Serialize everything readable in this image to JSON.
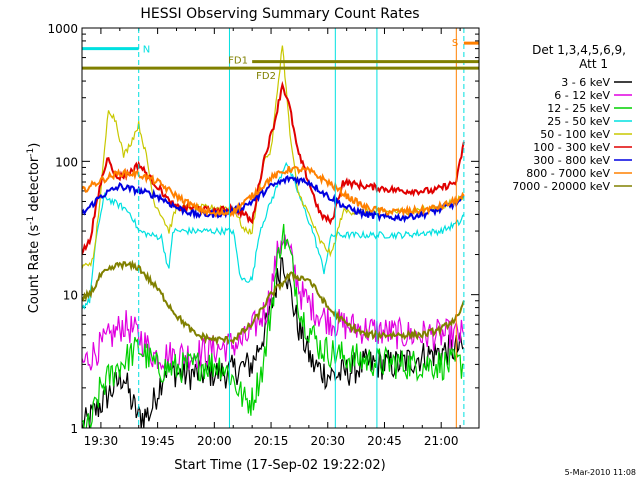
{
  "chart_data": {
    "type": "line",
    "title": "HESSI Observing Summary Count Rates",
    "xlabel": "Start Time (17-Sep-02 19:22:02)",
    "ylabel_main": "Count Rate (s",
    "ylabel_sup1": "-1",
    "ylabel_mid": " detector",
    "ylabel_sup2": "-1",
    "ylabel_end": ")",
    "yscale": "log",
    "ylim": [
      1,
      1000
    ],
    "xlim_minutes": [
      -5,
      100
    ],
    "x_ticks": [
      {
        "label": "19:30",
        "min": 0
      },
      {
        "label": "19:45",
        "min": 15
      },
      {
        "label": "20:00",
        "min": 30
      },
      {
        "label": "20:15",
        "min": 45
      },
      {
        "label": "20:30",
        "min": 60
      },
      {
        "label": "20:45",
        "min": 75
      },
      {
        "label": "21:00",
        "min": 90
      }
    ],
    "y_ticks": [
      {
        "label": "1",
        "value": 1
      },
      {
        "label": "10",
        "value": 10
      },
      {
        "label": "100",
        "value": 100
      },
      {
        "label": "1000",
        "value": 1000
      }
    ],
    "legend": {
      "placement": "right",
      "header1": "Det 1,3,4,5,6,9,",
      "header2": "Att 1"
    },
    "series": [
      {
        "name": "3 - 6 keV",
        "color": "#000000",
        "points": [
          [
            -5,
            1
          ],
          [
            6,
            2.5
          ],
          [
            8,
            1.6
          ],
          [
            10,
            1.2
          ],
          [
            13,
            1.3
          ],
          [
            17,
            2.8
          ],
          [
            22,
            2.5
          ],
          [
            28,
            2.6
          ],
          [
            33,
            2.6
          ],
          [
            40,
            3
          ],
          [
            44,
            6
          ],
          [
            47,
            14
          ],
          [
            48,
            20
          ],
          [
            49,
            15
          ],
          [
            52,
            6
          ],
          [
            56,
            3
          ],
          [
            60,
            2.5
          ],
          [
            63,
            2.5
          ],
          [
            70,
            3
          ],
          [
            78,
            3
          ],
          [
            86,
            3.5
          ],
          [
            95,
            4
          ],
          [
            96,
            4
          ]
        ]
      },
      {
        "name": "6 - 12 keV",
        "color": "#e000e0",
        "points": [
          [
            -5,
            3
          ],
          [
            6,
            6
          ],
          [
            10,
            5
          ],
          [
            14,
            3.5
          ],
          [
            19,
            3.5
          ],
          [
            25,
            3.6
          ],
          [
            32,
            4
          ],
          [
            38,
            4.5
          ],
          [
            44,
            8
          ],
          [
            47,
            22
          ],
          [
            48,
            28
          ],
          [
            50,
            20
          ],
          [
            53,
            10
          ],
          [
            58,
            7
          ],
          [
            63,
            6
          ],
          [
            70,
            5.5
          ],
          [
            80,
            5
          ],
          [
            90,
            5
          ],
          [
            96,
            5
          ]
        ]
      },
      {
        "name": "12 - 25 keV",
        "color": "#00d000",
        "points": [
          [
            -5,
            1
          ],
          [
            -3,
            1
          ],
          [
            0,
            2
          ],
          [
            5,
            3
          ],
          [
            10,
            4
          ],
          [
            15,
            2.8
          ],
          [
            20,
            2.8
          ],
          [
            27,
            3
          ],
          [
            32,
            3
          ],
          [
            35,
            2.3
          ],
          [
            38,
            1.6
          ],
          [
            40,
            1.6
          ],
          [
            43,
            3
          ],
          [
            47,
            20
          ],
          [
            48,
            30
          ],
          [
            50,
            20
          ],
          [
            53,
            7
          ],
          [
            58,
            4
          ],
          [
            63,
            3.5
          ],
          [
            70,
            3.2
          ],
          [
            80,
            3
          ],
          [
            90,
            3
          ],
          [
            96,
            3
          ]
        ]
      },
      {
        "name": "25 - 50 keV",
        "color": "#00e0e0",
        "points": [
          [
            -5,
            8
          ],
          [
            -3,
            9
          ],
          [
            -1,
            30
          ],
          [
            1,
            55
          ],
          [
            3,
            50
          ],
          [
            6,
            45
          ],
          [
            8,
            40
          ],
          [
            10,
            30
          ],
          [
            13,
            28
          ],
          [
            16,
            27
          ],
          [
            18,
            15
          ],
          [
            19,
            30
          ],
          [
            22,
            30
          ],
          [
            30,
            30
          ],
          [
            35,
            30
          ],
          [
            37,
            13
          ],
          [
            40,
            13
          ],
          [
            42,
            30
          ],
          [
            47,
            70
          ],
          [
            49,
            100
          ],
          [
            52,
            60
          ],
          [
            56,
            30
          ],
          [
            59,
            15
          ],
          [
            61,
            28
          ],
          [
            70,
            28
          ],
          [
            80,
            28
          ],
          [
            90,
            30
          ],
          [
            95,
            35
          ],
          [
            96,
            40
          ]
        ]
      },
      {
        "name": "50 - 100 keV",
        "color": "#c8c800",
        "points": [
          [
            -5,
            16
          ],
          [
            -2,
            18
          ],
          [
            0,
            60
          ],
          [
            2,
            250
          ],
          [
            4,
            200
          ],
          [
            6,
            110
          ],
          [
            8,
            140
          ],
          [
            10,
            190
          ],
          [
            12,
            110
          ],
          [
            14,
            50
          ],
          [
            16,
            40
          ],
          [
            18,
            30
          ],
          [
            20,
            45
          ],
          [
            25,
            45
          ],
          [
            32,
            45
          ],
          [
            35,
            45
          ],
          [
            38,
            30
          ],
          [
            40,
            30
          ],
          [
            43,
            100
          ],
          [
            45,
            120
          ],
          [
            48,
            760
          ],
          [
            50,
            160
          ],
          [
            52,
            60
          ],
          [
            55,
            40
          ],
          [
            58,
            25
          ],
          [
            61,
            20
          ],
          [
            64,
            42
          ],
          [
            70,
            42
          ],
          [
            80,
            42
          ],
          [
            90,
            45
          ],
          [
            96,
            55
          ]
        ]
      },
      {
        "name": "100 - 300 keV",
        "color": "#e00000",
        "points": [
          [
            -5,
            21
          ],
          [
            -3,
            25
          ],
          [
            0,
            70
          ],
          [
            2,
            110
          ],
          [
            4,
            75
          ],
          [
            7,
            80
          ],
          [
            10,
            95
          ],
          [
            13,
            75
          ],
          [
            16,
            60
          ],
          [
            18,
            50
          ],
          [
            20,
            45
          ],
          [
            25,
            45
          ],
          [
            30,
            42
          ],
          [
            35,
            45
          ],
          [
            38,
            40
          ],
          [
            40,
            35
          ],
          [
            43,
            100
          ],
          [
            46,
            200
          ],
          [
            48,
            380
          ],
          [
            50,
            250
          ],
          [
            52,
            120
          ],
          [
            55,
            70
          ],
          [
            58,
            40
          ],
          [
            61,
            35
          ],
          [
            64,
            70
          ],
          [
            70,
            65
          ],
          [
            80,
            60
          ],
          [
            88,
            60
          ],
          [
            94,
            70
          ],
          [
            96,
            140
          ]
        ]
      },
      {
        "name": "300 - 800 keV",
        "color": "#0000e0",
        "points": [
          [
            -5,
            40
          ],
          [
            0,
            55
          ],
          [
            5,
            65
          ],
          [
            10,
            60
          ],
          [
            15,
            55
          ],
          [
            20,
            45
          ],
          [
            25,
            40
          ],
          [
            30,
            40
          ],
          [
            35,
            42
          ],
          [
            40,
            50
          ],
          [
            45,
            65
          ],
          [
            50,
            75
          ],
          [
            55,
            70
          ],
          [
            60,
            55
          ],
          [
            65,
            45
          ],
          [
            70,
            40
          ],
          [
            75,
            38
          ],
          [
            80,
            38
          ],
          [
            85,
            40
          ],
          [
            90,
            44
          ],
          [
            95,
            50
          ],
          [
            96,
            55
          ]
        ]
      },
      {
        "name": "800 - 7000 keV",
        "color": "#ff8000",
        "points": [
          [
            -5,
            60
          ],
          [
            0,
            72
          ],
          [
            5,
            82
          ],
          [
            10,
            80
          ],
          [
            15,
            70
          ],
          [
            20,
            55
          ],
          [
            25,
            45
          ],
          [
            30,
            40
          ],
          [
            35,
            42
          ],
          [
            40,
            55
          ],
          [
            45,
            75
          ],
          [
            50,
            88
          ],
          [
            55,
            85
          ],
          [
            60,
            70
          ],
          [
            65,
            55
          ],
          [
            70,
            45
          ],
          [
            75,
            42
          ],
          [
            80,
            42
          ],
          [
            85,
            43
          ],
          [
            90,
            46
          ],
          [
            95,
            52
          ],
          [
            96,
            55
          ]
        ]
      },
      {
        "name": "7000 - 20000 keV",
        "color": "#808000",
        "points": [
          [
            -5,
            9
          ],
          [
            -2,
            11
          ],
          [
            0,
            14
          ],
          [
            5,
            17
          ],
          [
            10,
            16
          ],
          [
            15,
            11
          ],
          [
            20,
            7
          ],
          [
            25,
            5
          ],
          [
            30,
            4.6
          ],
          [
            35,
            4.6
          ],
          [
            40,
            6
          ],
          [
            45,
            10
          ],
          [
            50,
            14
          ],
          [
            55,
            13
          ],
          [
            60,
            8
          ],
          [
            65,
            6
          ],
          [
            70,
            5
          ],
          [
            75,
            5
          ],
          [
            80,
            5
          ],
          [
            85,
            5
          ],
          [
            90,
            5.5
          ],
          [
            95,
            7
          ],
          [
            96,
            9
          ]
        ]
      }
    ],
    "annotations": [
      {
        "label": "N",
        "color": "#00e0e0",
        "bar_start": -5,
        "bar_end": 10,
        "y": 700
      },
      {
        "label": "S",
        "color": "#ff8000",
        "bar_start": 96,
        "bar_end": 100,
        "y": 770
      },
      {
        "label": "FD1",
        "color": "#808000",
        "bar_start": 40,
        "bar_end": 100,
        "y": 560
      },
      {
        "label": "FD2",
        "color": "#808000",
        "bar_start": -5,
        "bar_end": 100,
        "y": 500
      }
    ],
    "vertical_markers": [
      {
        "min": 10,
        "color": "#00e0e0",
        "style": "dashed"
      },
      {
        "min": 34,
        "color": "#00e0e0",
        "style": "solid"
      },
      {
        "min": 62,
        "color": "#00e0e0",
        "style": "solid"
      },
      {
        "min": 73,
        "color": "#00e0e0",
        "style": "solid"
      },
      {
        "min": 94,
        "color": "#ff8000",
        "style": "solid"
      },
      {
        "min": 96,
        "color": "#00e0e0",
        "style": "dashed"
      }
    ]
  },
  "footer_stamp": "5-Mar-2010 11:08"
}
